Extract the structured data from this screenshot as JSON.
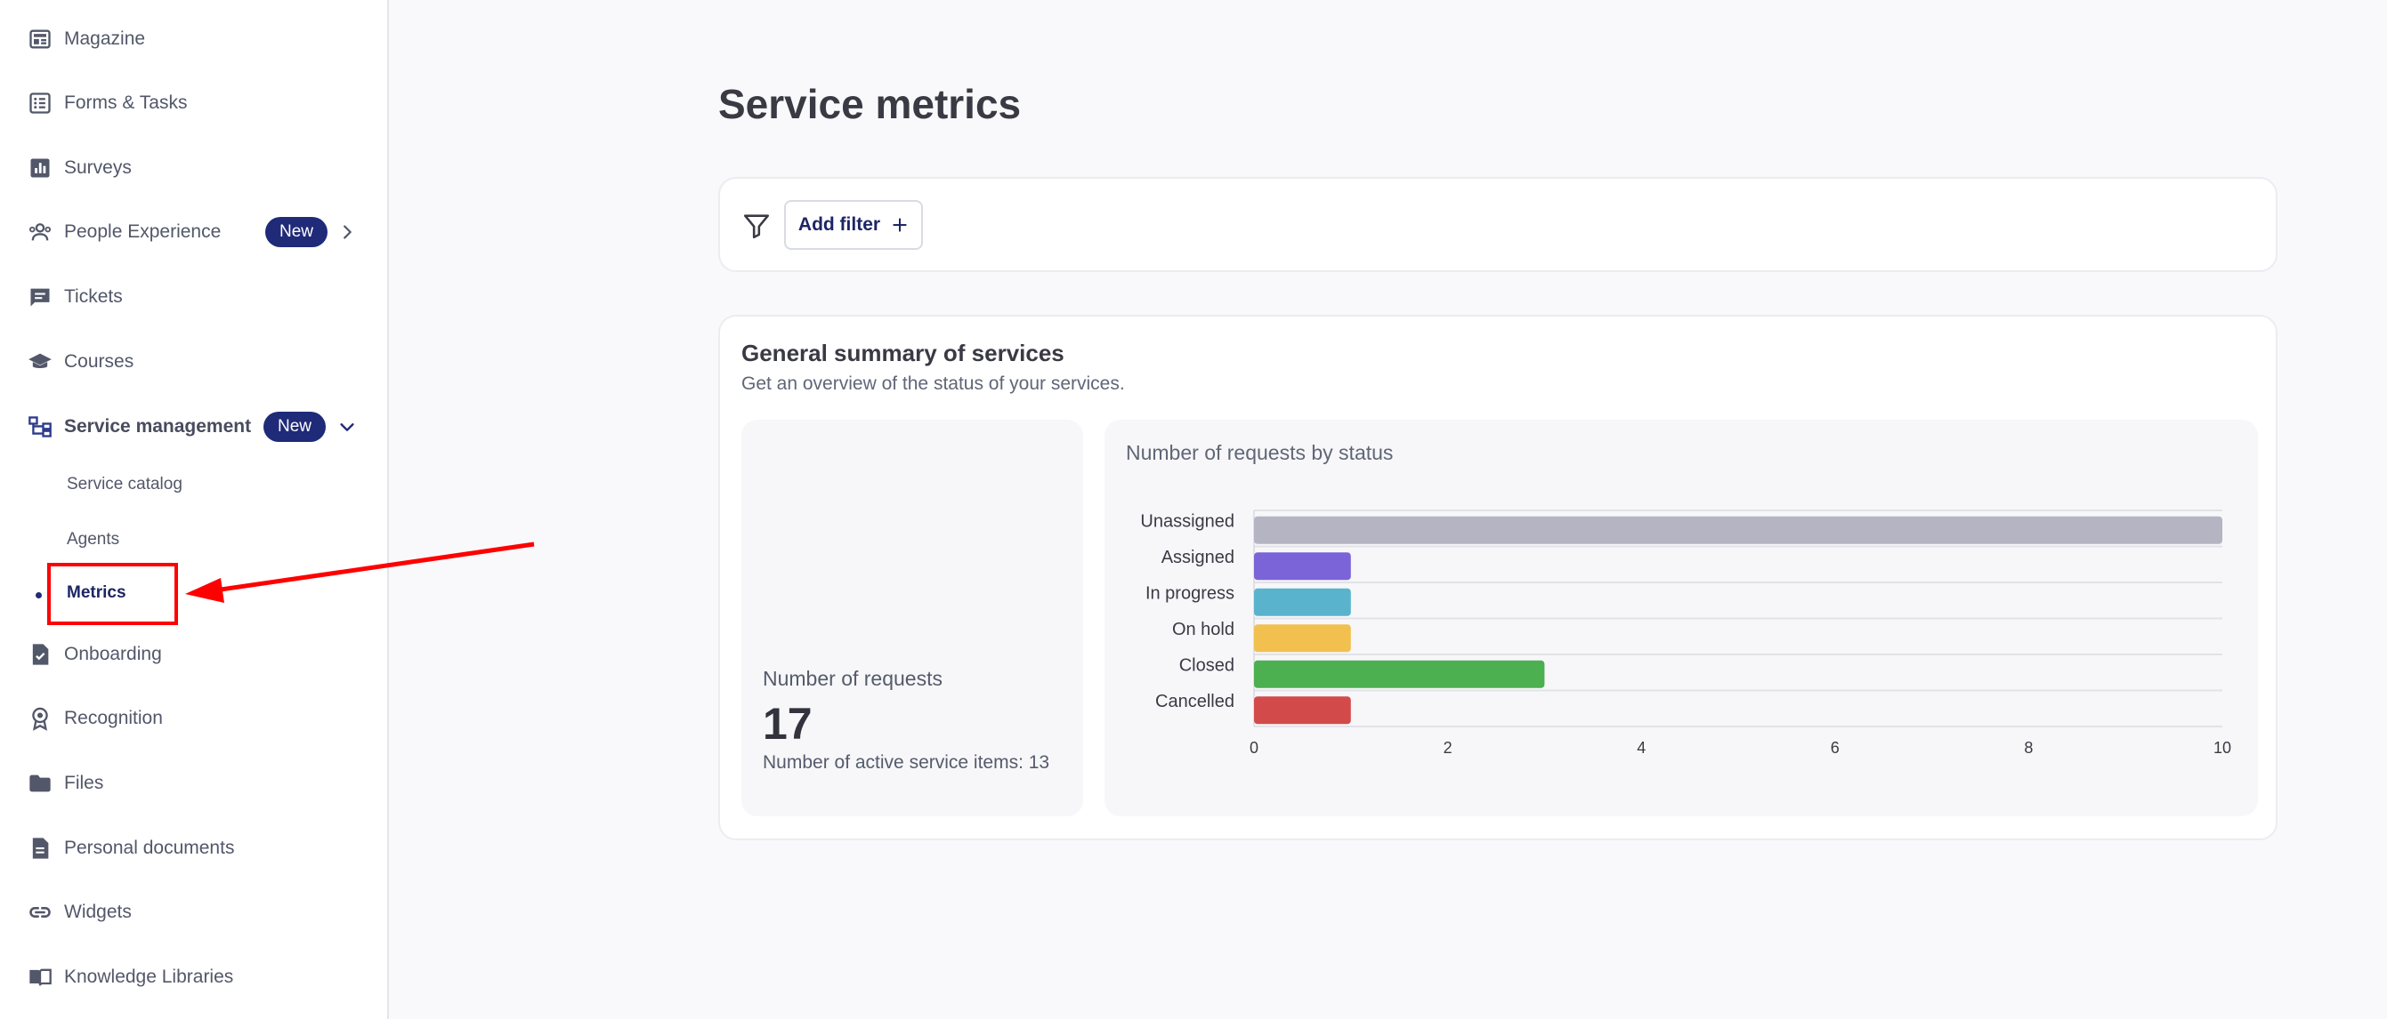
{
  "sidebar": {
    "items": [
      {
        "label": "Magazine",
        "icon": "magazine-icon"
      },
      {
        "label": "Forms & Tasks",
        "icon": "forms-icon"
      },
      {
        "label": "Surveys",
        "icon": "surveys-icon"
      },
      {
        "label": "People Experience",
        "icon": "people-icon",
        "badge": "New"
      },
      {
        "label": "Tickets",
        "icon": "tickets-icon"
      },
      {
        "label": "Courses",
        "icon": "courses-icon"
      },
      {
        "label": "Service management",
        "icon": "service-management-icon",
        "badge": "New"
      },
      {
        "label": "Onboarding",
        "icon": "onboarding-icon"
      },
      {
        "label": "Recognition",
        "icon": "recognition-icon"
      },
      {
        "label": "Files",
        "icon": "folder-icon"
      },
      {
        "label": "Personal documents",
        "icon": "document-icon"
      },
      {
        "label": "Widgets",
        "icon": "link-icon"
      },
      {
        "label": "Knowledge Libraries",
        "icon": "book-icon"
      }
    ],
    "sub_items": [
      {
        "label": "Service catalog"
      },
      {
        "label": "Agents"
      },
      {
        "label": "Metrics",
        "active": true
      }
    ]
  },
  "main": {
    "title": "Service metrics",
    "add_filter_label": "Add filter",
    "summary": {
      "title": "General summary of services",
      "subtitle": "Get an overview of the status of your services.",
      "kpi_label": "Number of requests",
      "kpi_value": "17",
      "kpi_sub": "Number of active service items: 13"
    }
  },
  "chart_data": {
    "type": "bar",
    "orientation": "horizontal",
    "title": "Number of requests by status",
    "categories": [
      "Unassigned",
      "Assigned",
      "In progress",
      "On hold",
      "Closed",
      "Cancelled"
    ],
    "values": [
      10,
      1,
      1,
      1,
      3,
      1
    ],
    "colors": [
      "#b5b4c2",
      "#7b64d8",
      "#59b3cc",
      "#f2c04e",
      "#4caf50",
      "#d24a4a"
    ],
    "xlim": [
      0,
      10
    ],
    "xticks": [
      0,
      2,
      4,
      6,
      8,
      10
    ],
    "grid": true
  },
  "colors": {
    "accent": "#1f2a78",
    "annotation": "#ff0000"
  }
}
